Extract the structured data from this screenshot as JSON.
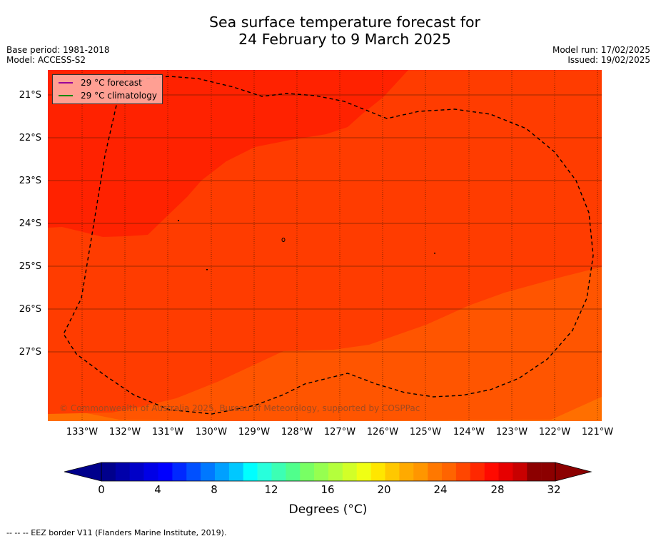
{
  "title": {
    "line1": "Sea surface temperature forecast for",
    "line2": "24 February to 9 March 2025"
  },
  "meta_left": {
    "base_period": "Base period: 1981-2018",
    "model": "Model: ACCESS-S2"
  },
  "meta_right": {
    "model_run": "Model run: 17/02/2025",
    "issued": "Issued: 19/02/2025"
  },
  "map": {
    "lat_labels": [
      "21°S",
      "22°S",
      "23°S",
      "24°S",
      "25°S",
      "26°S",
      "27°S"
    ],
    "lon_labels": [
      "133°W",
      "132°W",
      "131°W",
      "130°W",
      "129°W",
      "128°W",
      "127°W",
      "126°W",
      "125°W",
      "124°W",
      "123°W",
      "122°W",
      "121°W"
    ],
    "copyright": "© Commonwealth of Australia 2025, Bureau of Meteorology, supported by COSPPac",
    "colors": {
      "band_29_30": "#ff2200",
      "band_28_29": "#ff3c00",
      "band_27_28": "#ff5500",
      "band_26_27": "#ff6f00"
    }
  },
  "legend": {
    "forecast_label": "29 °C  forecast",
    "forecast_color": "#990099",
    "climatology_label": "29 °C  climatology",
    "climatology_color": "#008800"
  },
  "colorbar": {
    "ticks": [
      "0",
      "4",
      "8",
      "12",
      "16",
      "20",
      "24",
      "28",
      "32"
    ],
    "label": "Degrees (°C)",
    "colors": [
      "#00008c",
      "#0000aa",
      "#0000c8",
      "#0000e6",
      "#0000ff",
      "#0028ff",
      "#0050ff",
      "#0078ff",
      "#00a0ff",
      "#00c8ff",
      "#00ffff",
      "#28ffdc",
      "#3cffb4",
      "#50ff8c",
      "#78ff64",
      "#96ff50",
      "#b4ff3c",
      "#d2ff28",
      "#f0ff14",
      "#ffe600",
      "#ffc800",
      "#ffaa00",
      "#ff9600",
      "#ff7800",
      "#ff6400",
      "#ff4600",
      "#ff2800",
      "#ff0a00",
      "#e60000",
      "#c80000",
      "#8c0000",
      "#8c0000"
    ]
  },
  "footer": "--  --  -- EEZ border V11 (Flanders Marine Institute, 2019)."
}
